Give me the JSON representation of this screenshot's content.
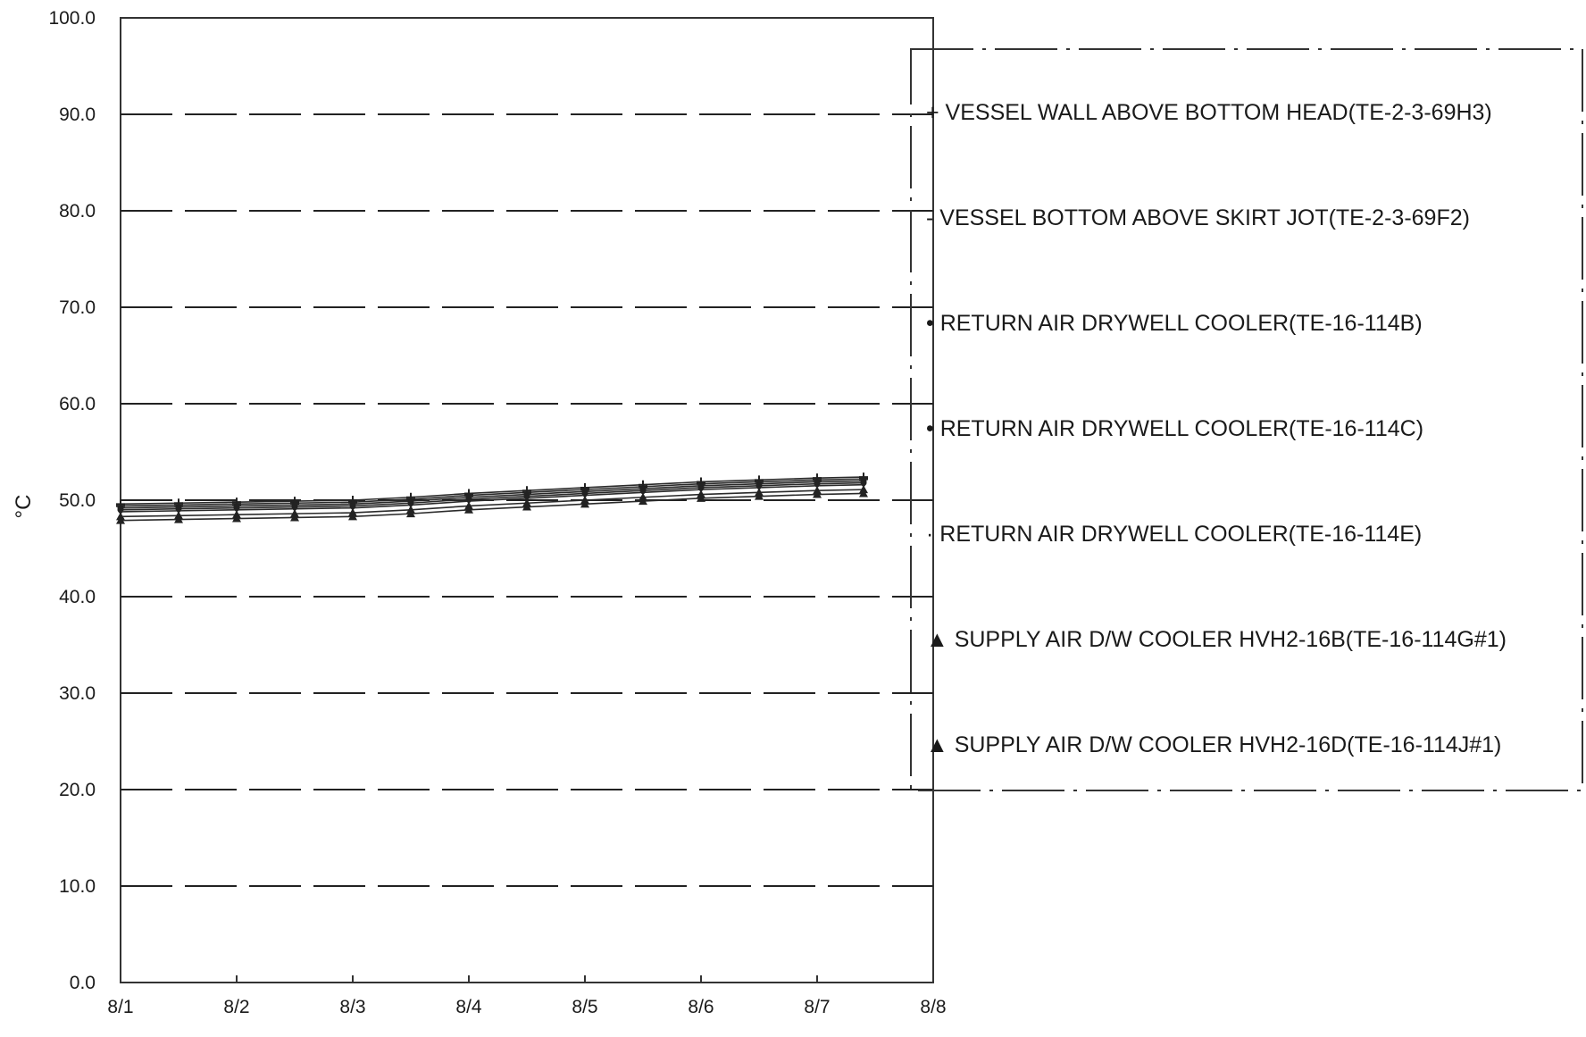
{
  "chart_data": {
    "type": "line",
    "ylabel": "°C",
    "ylim": [
      0,
      100
    ],
    "yticks": [
      "100.0",
      "90.0",
      "80.0",
      "70.0",
      "60.0",
      "50.0",
      "40.0",
      "30.0",
      "20.0",
      "10.0",
      "0.0"
    ],
    "xticks": [
      "8/1",
      "8/2",
      "8/3",
      "8/4",
      "8/5",
      "8/6",
      "8/7",
      "8/8"
    ],
    "xlim": [
      0,
      7
    ],
    "grid": true,
    "legend_position": "right",
    "x": [
      0.0,
      0.5,
      1.0,
      1.5,
      2.0,
      2.5,
      3.0,
      3.5,
      4.0,
      4.5,
      5.0,
      5.5,
      6.0,
      6.4
    ],
    "series": [
      {
        "name": "+ VESSEL WALL ABOVE BOTTOM HEAD(TE-2-3-69H3)",
        "marker": "plus",
        "values": [
          49.6,
          49.7,
          49.8,
          49.9,
          50.0,
          50.3,
          50.7,
          51.0,
          51.3,
          51.6,
          51.9,
          52.1,
          52.3,
          52.4
        ]
      },
      {
        "name": "- VESSEL BOTTOM ABOVE SKIRT JOT(TE-2-3-69F2)",
        "marker": "dash",
        "values": [
          49.4,
          49.5,
          49.6,
          49.7,
          49.8,
          50.1,
          50.5,
          50.8,
          51.1,
          51.4,
          51.7,
          51.9,
          52.1,
          52.2
        ]
      },
      {
        "name": "• RETURN AIR DRYWELL COOLER(TE-16-114B)",
        "marker": "dot",
        "values": [
          49.2,
          49.3,
          49.4,
          49.5,
          49.6,
          49.9,
          50.3,
          50.6,
          50.9,
          51.2,
          51.5,
          51.7,
          51.9,
          52.0
        ]
      },
      {
        "name": "• RETURN AIR DRYWELL COOLER(TE-16-114C)",
        "marker": "dot",
        "values": [
          49.0,
          49.1,
          49.2,
          49.3,
          49.4,
          49.7,
          50.1,
          50.4,
          50.7,
          51.0,
          51.3,
          51.5,
          51.7,
          51.8
        ]
      },
      {
        "name": "· RETURN AIR DRYWELL COOLER(TE-16-114E)",
        "marker": "smalldot",
        "values": [
          48.8,
          48.9,
          49.0,
          49.1,
          49.2,
          49.5,
          49.9,
          50.2,
          50.5,
          50.8,
          51.1,
          51.3,
          51.5,
          51.6
        ]
      },
      {
        "name": "▲ SUPPLY AIR D/W COOLER HVH2-16B(TE-16-114G#1)",
        "marker": "triangle",
        "values": [
          48.3,
          48.4,
          48.5,
          48.6,
          48.7,
          49.0,
          49.4,
          49.7,
          50.0,
          50.3,
          50.6,
          50.8,
          51.0,
          51.1
        ]
      },
      {
        "name": "▲ SUPPLY AIR D/W COOLER HVH2-16D(TE-16-114J#1)",
        "marker": "triangle",
        "values": [
          47.9,
          48.0,
          48.1,
          48.2,
          48.3,
          48.6,
          49.0,
          49.3,
          49.6,
          49.9,
          50.2,
          50.4,
          50.6,
          50.7
        ]
      }
    ]
  }
}
